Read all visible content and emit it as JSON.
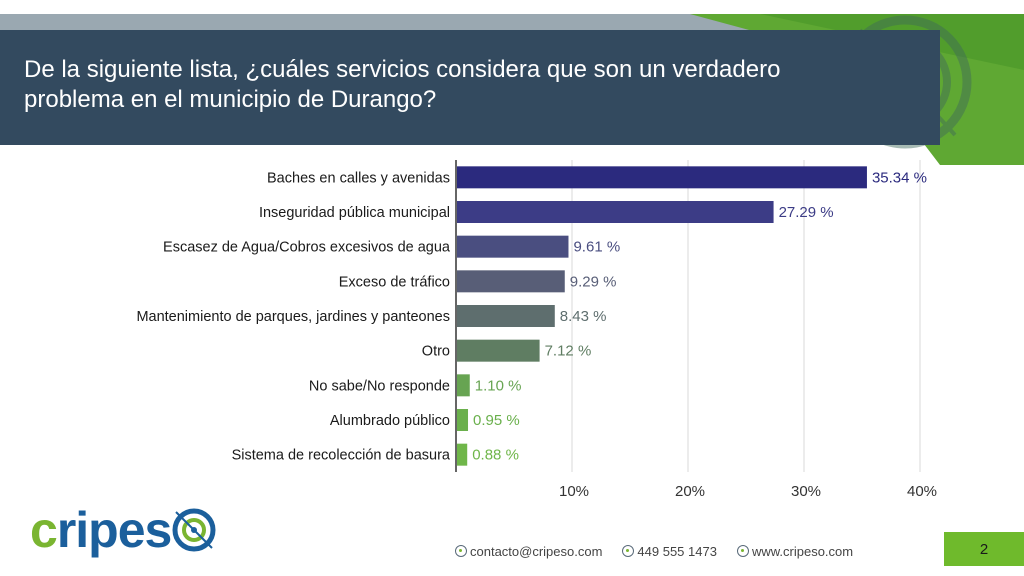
{
  "title": "De la siguiente lista, ¿cuáles servicios considera que son un verdadero problema en el municipio de Durango?",
  "colors": {
    "title_band": "#334a5f",
    "accent_green": "#6fba2c",
    "logo_blue": "#1b5f9c",
    "logo_green": "#7ab531",
    "bar_gradient": [
      "#2b2a7e",
      "#3c3c86",
      "#4a4e80",
      "#585e77",
      "#5e6e6e",
      "#5f7d62",
      "#67a452",
      "#6ab04c",
      "#6fb649"
    ]
  },
  "chart_data": {
    "type": "bar",
    "orientation": "horizontal",
    "categories": [
      "Baches en calles y avenidas",
      "Inseguridad pública municipal",
      "Escasez de Agua/Cobros excesivos de agua",
      "Exceso de tráfico",
      "Mantenimiento de parques, jardines y panteones",
      "Otro",
      "No sabe/No responde",
      "Alumbrado público",
      "Sistema de recolección de basura"
    ],
    "values": [
      35.34,
      27.29,
      9.61,
      9.29,
      8.43,
      7.12,
      1.1,
      0.95,
      0.88
    ],
    "value_labels": [
      "35.34 %",
      "27.29 %",
      "9.61 %",
      "9.29 %",
      "8.43 %",
      "7.12 %",
      "1.10 %",
      "0.95 %",
      "0.88 %"
    ],
    "xticks": [
      10,
      20,
      30,
      40
    ],
    "xtick_labels": [
      "10%",
      "20%",
      "30%",
      "40%"
    ],
    "xlim": [
      0,
      40
    ],
    "grid": true,
    "title": "De la siguiente lista, ¿cuáles servicios considera que son un verdadero problema en el municipio de Durango?",
    "xlabel": "",
    "ylabel": ""
  },
  "logo": {
    "text_c": "c",
    "text_rest": "ripes",
    "icon": "target-icon"
  },
  "footer": {
    "email": "contacto@cripeso.com",
    "phone": "449 555 1473",
    "web": "www.cripeso.com",
    "icon": "globe-icon"
  },
  "page_number": "2"
}
